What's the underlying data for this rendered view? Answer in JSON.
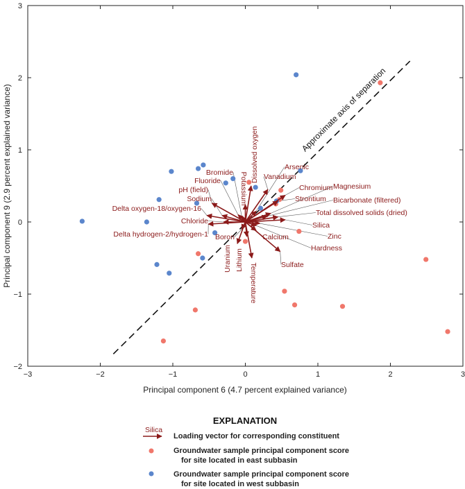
{
  "chart_data": {
    "type": "scatter",
    "title": "",
    "xlabel": "Principal component 6 (4.7 percent explained variance)",
    "ylabel": "Principal component 9 (2.9 percent explained variance)",
    "xlim": [
      -3,
      3
    ],
    "ylim": [
      -2,
      3
    ],
    "xticks": [
      "-3",
      "-2",
      "-1",
      "0",
      "1",
      "2",
      "3"
    ],
    "yticks": [
      "-2",
      "-1",
      "0",
      "1",
      "2",
      "3"
    ],
    "grid": false,
    "colors": {
      "east": "#f0776b",
      "west": "#5b86cc",
      "vector": "#8b1a1a"
    },
    "separation_line": {
      "label_1": "Approximate",
      "label_2": "axis of separation",
      "from": [
        -1.82,
        -1.83
      ],
      "to": [
        2.27,
        2.23
      ]
    },
    "series": [
      {
        "name": "east",
        "points": [
          [
            1.86,
            1.93
          ],
          [
            0.49,
            0.44
          ],
          [
            0.42,
            0.25
          ],
          [
            0.47,
            0.31
          ],
          [
            0.05,
            0.55
          ],
          [
            0.74,
            -0.13
          ],
          [
            0.0,
            -0.27
          ],
          [
            -0.65,
            -0.44
          ],
          [
            2.49,
            -0.52
          ],
          [
            0.54,
            -0.96
          ],
          [
            0.68,
            -1.15
          ],
          [
            1.34,
            -1.17
          ],
          [
            -0.69,
            -1.22
          ],
          [
            -1.13,
            -1.65
          ],
          [
            2.79,
            -1.52
          ]
        ]
      },
      {
        "name": "west",
        "points": [
          [
            0.7,
            2.04
          ],
          [
            0.76,
            0.71
          ],
          [
            -0.58,
            0.79
          ],
          [
            -0.65,
            0.74
          ],
          [
            -1.02,
            0.7
          ],
          [
            -0.17,
            0.6
          ],
          [
            -0.27,
            0.54
          ],
          [
            0.14,
            0.48
          ],
          [
            -1.19,
            0.31
          ],
          [
            -0.67,
            0.26
          ],
          [
            0.21,
            0.19
          ],
          [
            0.43,
            0.29
          ],
          [
            -2.25,
            0.01
          ],
          [
            -1.36,
            0.0
          ],
          [
            -0.42,
            -0.15
          ],
          [
            -0.59,
            -0.5
          ],
          [
            -1.22,
            -0.59
          ],
          [
            -1.05,
            -0.71
          ]
        ]
      }
    ],
    "vectors": [
      {
        "name": "Dissolved oxygen",
        "x": 0.08,
        "y": 0.5
      },
      {
        "name": "Potassium",
        "x": 0.0,
        "y": 0.24
      },
      {
        "name": "Vanadium",
        "x": 0.31,
        "y": 0.45
      },
      {
        "name": "Arsenic",
        "x": 0.15,
        "y": 0.15
      },
      {
        "name": "Chromium",
        "x": 0.55,
        "y": 0.37
      },
      {
        "name": "Strontium",
        "x": 0.45,
        "y": 0.29
      },
      {
        "name": "Magnesium",
        "x": 0.35,
        "y": 0.12
      },
      {
        "name": "Bicarbonate (filtered)",
        "x": 0.3,
        "y": 0.08
      },
      {
        "name": "Total dissolved solids (dried)",
        "x": 0.45,
        "y": 0.07
      },
      {
        "name": "Silica",
        "x": 0.55,
        "y": 0.03
      },
      {
        "name": "Zinc",
        "x": 0.2,
        "y": -0.02
      },
      {
        "name": "Hardness",
        "x": 0.15,
        "y": -0.05
      },
      {
        "name": "Sulfate",
        "x": 0.48,
        "y": -0.41
      },
      {
        "name": "Calcium",
        "x": 0.15,
        "y": -0.12
      },
      {
        "name": "Temperature",
        "x": 0.09,
        "y": -0.5
      },
      {
        "name": "Lithium",
        "x": 0.02,
        "y": -0.2
      },
      {
        "name": "Uranium",
        "x": -0.11,
        "y": -0.3
      },
      {
        "name": "Boron",
        "x": -0.05,
        "y": -0.1
      },
      {
        "name": "Delta hydrogen-2/hydrogen-1",
        "x": -0.51,
        "y": -0.03
      },
      {
        "name": "Chloride",
        "x": -0.3,
        "y": 0.0
      },
      {
        "name": "Delta oxygen-18/oxygen-16",
        "x": -0.53,
        "y": 0.09
      },
      {
        "name": "Sodium",
        "x": -0.32,
        "y": 0.09
      },
      {
        "name": "pH (field)",
        "x": -0.46,
        "y": 0.26
      },
      {
        "name": "Fluoride",
        "x": -0.1,
        "y": 0.1
      },
      {
        "name": "Bromide",
        "x": -0.05,
        "y": 0.08
      }
    ]
  },
  "legend": {
    "title": "EXPLANATION",
    "vector_sample_label": "Silica",
    "vector_text": "Loading vector for corresponding constituent",
    "east_text_1": "Groundwater sample principal component score",
    "east_text_2": "for site located in east subbasin",
    "west_text_1": "Groundwater sample principal component score",
    "west_text_2": "for site located in west subbasin"
  }
}
